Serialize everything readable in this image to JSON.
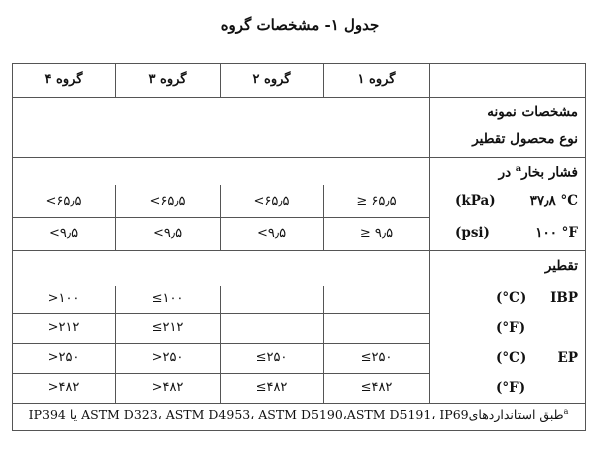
{
  "title": "جدول ۱- مشخصات گروه",
  "headers": [
    "گروه ۱",
    "گروه ۲",
    "گروه ۳",
    "گروه ۴"
  ],
  "sample_section": {
    "line1": "مشخصات نمونه",
    "line2": "نوع محصول تقطیر"
  },
  "vapor": {
    "title": "فشار بخار",
    "sup": "a",
    "title_suffix": "در",
    "kpa_label": {
      "temp": "۳۷٫۸ °C",
      "unit": "(kPa)"
    },
    "psi_label": {
      "temp": "۱۰۰ °F",
      "unit": "(psi)"
    },
    "kpa": [
      "≥ ۶۵٫۵",
      "<۶۵٫۵",
      "<۶۵٫۵",
      "<۶۵٫۵"
    ],
    "psi": [
      "≥ ۹٫۵",
      "<۹٫۵",
      "<۹٫۵",
      "<۹٫۵"
    ]
  },
  "distillation": {
    "title": "تقطیر",
    "ibp_label": "IBP",
    "ep_label": "EP",
    "c_unit": "(°C)",
    "f_unit": "(°F)",
    "ibp_c": [
      "",
      "",
      "≤۱۰۰",
      ">۱۰۰"
    ],
    "ibp_f": [
      "",
      "",
      "≤۲۱۲",
      ">۲۱۲"
    ],
    "ep_c": [
      "≤۲۵۰",
      "≤۲۵۰",
      ">۲۵۰",
      ">۲۵۰"
    ],
    "ep_f": [
      "≤۴۸۲",
      "≤۴۸۲",
      ">۴۸۲",
      ">۴۸۲"
    ]
  },
  "footnote": {
    "sup": "a",
    "text": "طبق استانداردهایASTM D323، ASTM D4953، ASTM D5190،ASTM D5191، IP69 یا IP394"
  }
}
